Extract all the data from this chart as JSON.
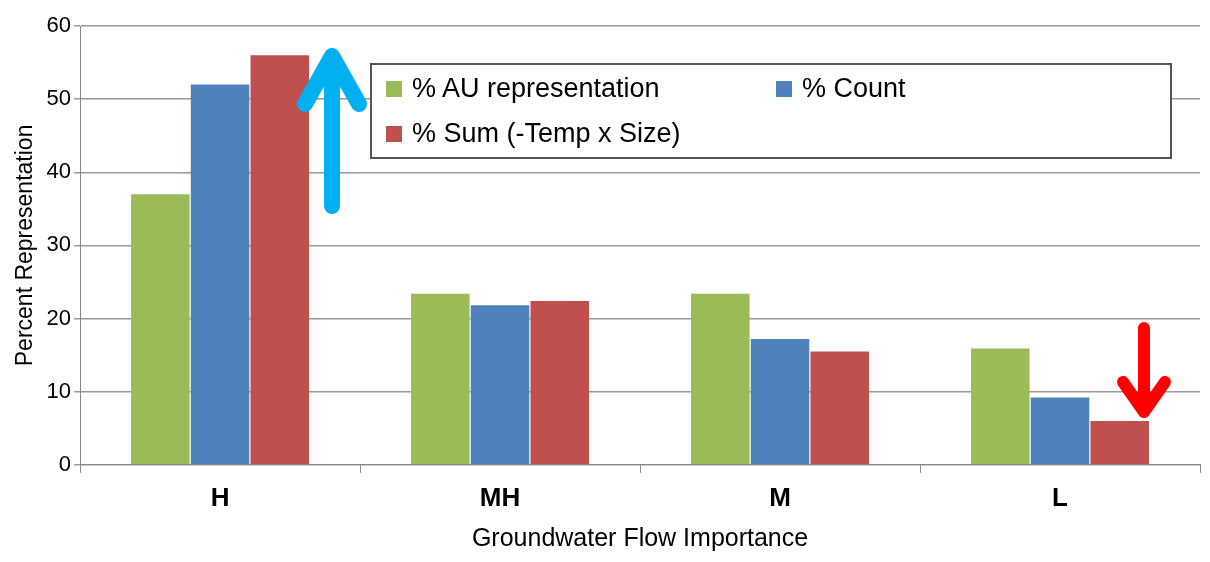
{
  "chart_data": {
    "type": "bar",
    "xlabel": "Groundwater Flow Importance",
    "ylabel": "Percent Representation",
    "categories": [
      "H",
      "MH",
      "M",
      "L"
    ],
    "series": [
      {
        "name": "% AU representation",
        "color": "#9bbb59",
        "values": [
          37,
          23.4,
          23.4,
          15.9
        ]
      },
      {
        "name": "% Count",
        "color": "#4f81bd",
        "values": [
          52,
          21.8,
          17.2,
          9.2
        ]
      },
      {
        "name": "% Sum (-Temp x Size)",
        "color": "#c0504d",
        "values": [
          56,
          22.4,
          15.5,
          6
        ]
      }
    ],
    "ylim": [
      0,
      60
    ],
    "yticks": [
      0,
      10,
      20,
      30,
      40,
      50,
      60
    ],
    "grid": "y",
    "legend": "top right"
  }
}
